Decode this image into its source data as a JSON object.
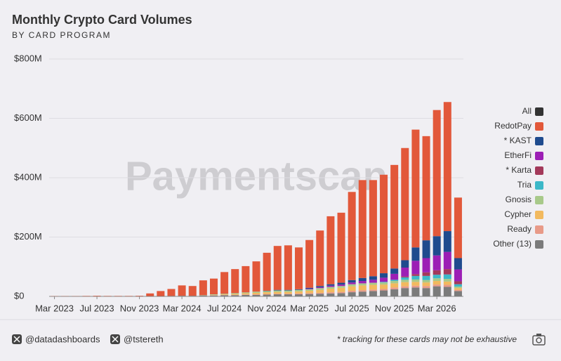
{
  "chart_data": {
    "type": "stacked_bar",
    "title": "Monthly Crypto Card Volumes",
    "subtitle": "BY CARD PROGRAM",
    "watermark": "Paymentscan",
    "categories": [
      "Mar 2023",
      null,
      null,
      null,
      "Jul 2023",
      null,
      null,
      null,
      "Nov 2023",
      null,
      null,
      null,
      "Mar 2024",
      null,
      null,
      null,
      "Jul 2024",
      null,
      null,
      null,
      "Nov 2024",
      null,
      null,
      null,
      "Mar 2025",
      null,
      null,
      null,
      "Jul 2025",
      null,
      null,
      null,
      "Nov 2025",
      null,
      null,
      null,
      "Mar 2026",
      null,
      null
    ],
    "legend_all": {
      "name": "All",
      "color": "#333333"
    },
    "series": [
      {
        "name": "RedotPay",
        "color": "#e2583a",
        "values": [
          0.5,
          0.5,
          0.5,
          1,
          1.5,
          1,
          1,
          1,
          1.5,
          9,
          17,
          23.5,
          35,
          33,
          50,
          53,
          73,
          81,
          88.5,
          102,
          128,
          148,
          150,
          141,
          161,
          187,
          229,
          236,
          297,
          330,
          324,
          332,
          349,
          378,
          397,
          351,
          425,
          435,
          204
        ]
      },
      {
        "name": "* KAST",
        "color": "#1f4b8e",
        "values": [
          null,
          null,
          null,
          null,
          null,
          null,
          null,
          null,
          null,
          null,
          null,
          null,
          null,
          null,
          null,
          null,
          null,
          null,
          null,
          null,
          1,
          2,
          2,
          2,
          3,
          4,
          5,
          6,
          8,
          10,
          12,
          15,
          18,
          25,
          45,
          60,
          65,
          70,
          38
        ]
      },
      {
        "name": "EtherFi",
        "color": "#9c1fb5",
        "values": [
          null,
          null,
          null,
          null,
          null,
          null,
          null,
          null,
          null,
          null,
          null,
          null,
          null,
          null,
          null,
          null,
          null,
          null,
          null,
          null,
          null,
          null,
          null,
          null,
          2,
          3,
          4,
          5,
          6,
          8,
          10,
          14,
          20,
          30,
          45,
          48,
          50,
          58,
          40
        ]
      },
      {
        "name": "* Karta",
        "color": "#a3395a",
        "values": [
          null,
          null,
          null,
          null,
          null,
          null,
          null,
          null,
          null,
          null,
          null,
          null,
          null,
          null,
          null,
          null,
          null,
          null,
          null,
          null,
          null,
          null,
          null,
          null,
          null,
          null,
          null,
          null,
          null,
          null,
          null,
          null,
          null,
          3,
          6,
          12,
          15,
          18,
          10
        ]
      },
      {
        "name": "Tria",
        "color": "#3cb8c8",
        "values": [
          null,
          null,
          null,
          null,
          null,
          null,
          null,
          null,
          null,
          null,
          null,
          null,
          null,
          null,
          null,
          null,
          null,
          null,
          null,
          null,
          null,
          null,
          null,
          null,
          null,
          null,
          null,
          null,
          null,
          null,
          null,
          2,
          4,
          8,
          12,
          14,
          12,
          15,
          8
        ]
      },
      {
        "name": "Gnosis",
        "color": "#a8c98a",
        "values": [
          null,
          null,
          null,
          null,
          null,
          null,
          null,
          null,
          null,
          null,
          null,
          null,
          null,
          null,
          1,
          2,
          2,
          3,
          3,
          4,
          4,
          5,
          5,
          5,
          5,
          6,
          6,
          6,
          7,
          7,
          7,
          7,
          8,
          8,
          8,
          8,
          9,
          9,
          5
        ]
      },
      {
        "name": "Cypher",
        "color": "#f2b95e",
        "values": [
          null,
          null,
          null,
          null,
          null,
          null,
          null,
          null,
          null,
          null,
          null,
          null,
          null,
          null,
          null,
          1,
          2,
          3,
          4,
          5,
          6,
          6,
          6,
          7,
          8,
          10,
          12,
          14,
          15,
          16,
          16,
          15,
          14,
          14,
          13,
          12,
          12,
          11,
          6
        ]
      },
      {
        "name": "Ready",
        "color": "#e89a88",
        "values": [
          null,
          null,
          null,
          null,
          null,
          null,
          null,
          null,
          null,
          null,
          null,
          null,
          null,
          null,
          null,
          1,
          1,
          1,
          1.5,
          2,
          2,
          2,
          2,
          3,
          3,
          3,
          4,
          4,
          5,
          5,
          5,
          5,
          6,
          6,
          6,
          7,
          6,
          7,
          4
        ]
      },
      {
        "name": "Other (13)",
        "color": "#7b7b7b",
        "values": [
          0.5,
          0.5,
          0.5,
          0.5,
          0.5,
          0.5,
          0.5,
          0.5,
          0.5,
          1,
          1,
          1.5,
          2,
          2,
          3,
          3,
          4,
          4,
          5,
          5,
          6,
          7,
          7,
          7,
          8,
          9,
          10,
          11,
          14,
          16,
          18,
          20,
          24,
          28,
          30,
          28,
          34,
          32,
          18
        ]
      }
    ],
    "ylim": [
      0,
      800
    ],
    "yticks": [
      {
        "value": 0,
        "label": "$0"
      },
      {
        "value": 200,
        "label": "$200M"
      },
      {
        "value": 400,
        "label": "$400M"
      },
      {
        "value": 600,
        "label": "$600M"
      },
      {
        "value": 800,
        "label": "$800M"
      }
    ],
    "grid": true,
    "legend": "right",
    "footer": {
      "handles": [
        "@datadashboards",
        "@tstereth"
      ],
      "note": "* tracking for these cards may not be exhaustive"
    }
  }
}
